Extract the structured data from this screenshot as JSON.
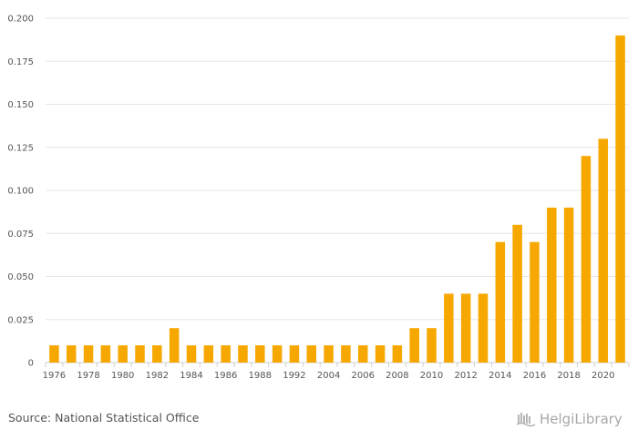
{
  "chart_data": {
    "type": "bar",
    "title": "",
    "xlabel": "",
    "ylabel": "",
    "color": "#f7a800",
    "ylim": [
      0,
      0.2
    ],
    "grid": true,
    "yticks": [
      "0",
      "0.025",
      "0.050",
      "0.075",
      "0.100",
      "0.125",
      "0.150",
      "0.175",
      "0.200"
    ],
    "categories": [
      "1976",
      "1977",
      "1978",
      "1979",
      "1980",
      "1981",
      "1982",
      "1983",
      "1984",
      "1985",
      "1986",
      "1987",
      "1988",
      "1989",
      "1992",
      "2003",
      "2004",
      "2005",
      "2006",
      "2007",
      "2008",
      "2009",
      "2010",
      "2011",
      "2012",
      "2013",
      "2014",
      "2015",
      "2016",
      "2017",
      "2018",
      "2019",
      "2020",
      "2021"
    ],
    "tick_labels": [
      "1976",
      "",
      "1978",
      "",
      "1980",
      "",
      "1982",
      "",
      "1984",
      "",
      "1986",
      "",
      "1988",
      "",
      "1992",
      "",
      "2004",
      "",
      "2006",
      "",
      "2008",
      "",
      "2010",
      "",
      "2012",
      "",
      "2014",
      "",
      "2016",
      "",
      "2018",
      "",
      "2020",
      ""
    ],
    "values": [
      0.01,
      0.01,
      0.01,
      0.01,
      0.01,
      0.01,
      0.01,
      0.02,
      0.01,
      0.01,
      0.01,
      0.01,
      0.01,
      0.01,
      0.01,
      0.01,
      0.01,
      0.01,
      0.01,
      0.01,
      0.01,
      0.02,
      0.02,
      0.04,
      0.04,
      0.04,
      0.07,
      0.08,
      0.07,
      0.09,
      0.09,
      0.12,
      0.13,
      0.19
    ]
  },
  "footer": {
    "source": "Source: National Statistical Office",
    "brand": "HelgiLibrary",
    "brand_icon": "helgi-library-logo-icon"
  }
}
